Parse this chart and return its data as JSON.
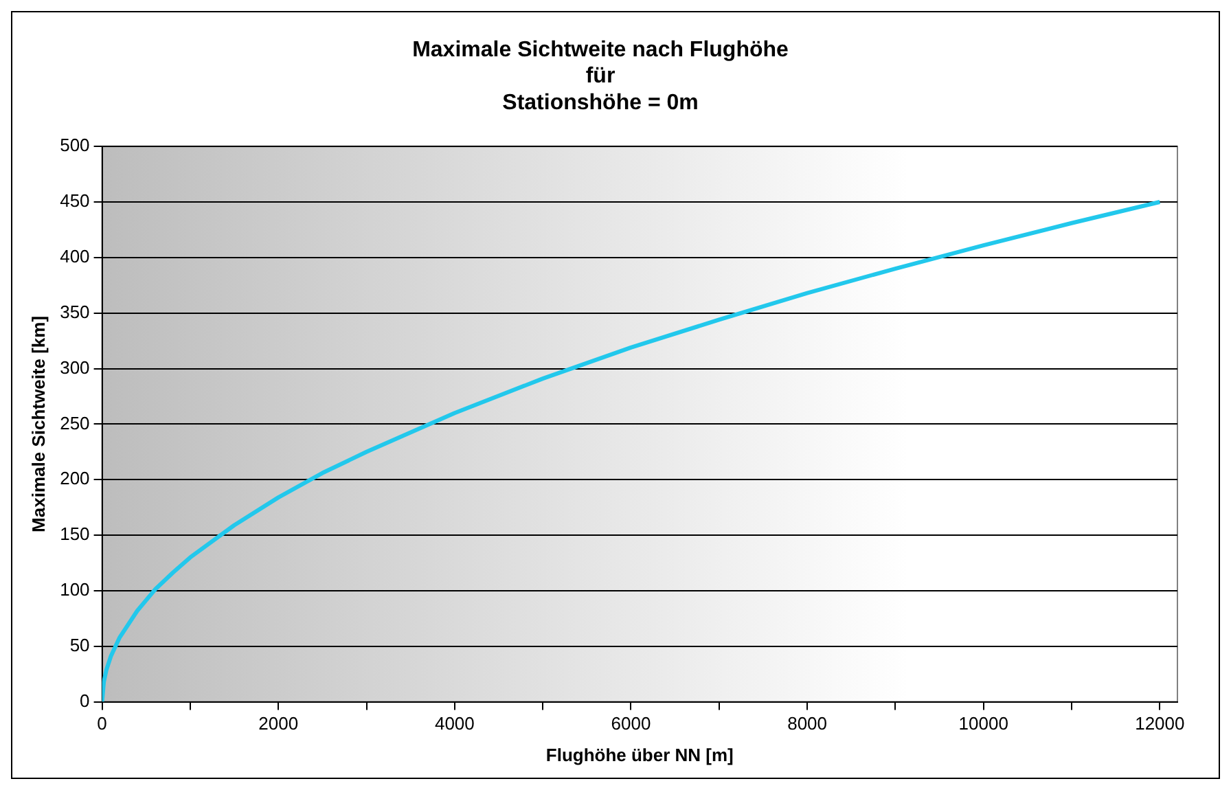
{
  "chart_data": {
    "type": "line",
    "title": [
      "Maximale Sichtweite nach Flughöhe",
      "für",
      "Stationshöhe = 0m"
    ],
    "xlabel": "Flughöhe über NN [m]",
    "ylabel": "Maximale Sichtweite [km]",
    "x": [
      0,
      20,
      50,
      100,
      200,
      400,
      600,
      800,
      1000,
      1500,
      2000,
      2500,
      3000,
      4000,
      5000,
      6000,
      7000,
      8000,
      9000,
      10000,
      11000,
      12000
    ],
    "series": [
      {
        "color": "#22c8ec",
        "values": [
          0,
          18,
          29,
          41,
          58,
          82,
          101,
          116,
          130,
          159,
          184,
          206,
          225,
          260,
          291,
          319,
          344,
          368,
          390,
          411,
          431,
          450
        ]
      }
    ],
    "xlim": [
      0,
      12200
    ],
    "xticks": [
      0,
      {
        "value": 1000,
        "label": null
      },
      2000,
      {
        "value": 3000,
        "label": null
      },
      4000,
      {
        "value": 5000,
        "label": null
      },
      6000,
      {
        "value": 7000,
        "label": null
      },
      8000,
      {
        "value": 9000,
        "label": null
      },
      10000,
      {
        "value": 11000,
        "label": null
      },
      12000
    ],
    "ylim": [
      0,
      500
    ],
    "yticks": [
      0,
      50,
      100,
      150,
      200,
      250,
      300,
      350,
      400,
      450,
      500
    ],
    "grid": "y",
    "legend": false,
    "marker": "none",
    "line_style": "solid"
  }
}
